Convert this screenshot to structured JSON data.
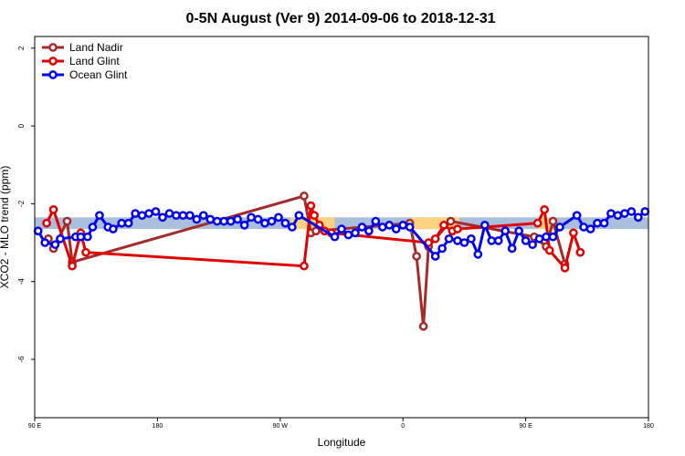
{
  "chart_data": {
    "type": "line",
    "title": "0-5N August (Ver 9)   2014-09-06 to 2018-12-31",
    "xlabel": "Longitude",
    "ylabel": "XCO2 - MLO trend (ppm)",
    "ylim": [
      -7.5,
      2.3
    ],
    "xlim": [
      0,
      360
    ],
    "y_ticks": [
      2,
      0,
      -2,
      -4,
      -6
    ],
    "x_ticks": [
      {
        "pos": 0,
        "label": "90 E"
      },
      {
        "pos": 72,
        "label": "180"
      },
      {
        "pos": 144,
        "label": "90 W"
      },
      {
        "pos": 216,
        "label": "0"
      },
      {
        "pos": 288,
        "label": "90 E"
      },
      {
        "pos": 360,
        "label": "180"
      }
    ],
    "legend_position": "top-left",
    "background_band": {
      "y_range": [
        -2.65,
        -2.35
      ],
      "color": "#a9bfdc",
      "highlight_color": "#ffd27f",
      "highlights_x": [
        [
          150,
          176
        ],
        [
          221,
          249
        ],
        [
          295,
          305
        ]
      ]
    },
    "series": [
      {
        "name": "Land Nadir",
        "color": "#a52a2a",
        "x": [
          8,
          11,
          19,
          22,
          158,
          162,
          165,
          220,
          224,
          228,
          231,
          244,
          293,
          300,
          304,
          311
        ],
        "y": [
          -2.9,
          -3.15,
          -2.45,
          -3.5,
          -1.8,
          -2.75,
          -2.7,
          -2.5,
          -3.35,
          -5.15,
          -3.1,
          -2.45,
          -2.85,
          -3.1,
          -2.45,
          -3.55
        ]
      },
      {
        "name": "Land Glint",
        "color": "#e10000",
        "x": [
          7,
          11,
          22,
          27,
          30,
          158,
          162,
          164,
          167,
          170,
          174,
          231,
          235,
          240,
          245,
          248,
          295,
          299,
          302,
          311,
          316,
          320
        ],
        "y": [
          -2.5,
          -2.15,
          -3.6,
          -2.75,
          -3.25,
          -3.6,
          -2.05,
          -2.3,
          -2.55,
          -2.7,
          -2.75,
          -3.0,
          -2.9,
          -2.55,
          -2.7,
          -2.65,
          -2.5,
          -2.15,
          -3.2,
          -3.65,
          -2.75,
          -3.25
        ]
      },
      {
        "name": "Ocean Glint",
        "color": "#0000ee",
        "x": [
          2,
          6,
          12,
          15,
          24,
          27,
          31,
          34,
          38,
          43,
          46,
          51,
          55,
          59,
          63,
          67,
          71,
          75,
          79,
          83,
          87,
          91,
          95,
          99,
          103,
          107,
          111,
          115,
          119,
          123,
          127,
          131,
          135,
          139,
          143,
          147,
          151,
          155,
          176,
          180,
          184,
          188,
          192,
          196,
          200,
          204,
          208,
          212,
          216,
          220,
          235,
          239,
          243,
          248,
          252,
          256,
          260,
          264,
          268,
          272,
          276,
          280,
          284,
          288,
          292,
          296,
          300,
          304,
          308,
          318,
          322,
          326,
          330,
          334,
          338,
          342,
          346,
          350,
          354,
          358
        ],
        "y": [
          -2.7,
          -3.0,
          -3.05,
          -2.9,
          -2.85,
          -2.85,
          -2.85,
          -2.6,
          -2.3,
          -2.6,
          -2.65,
          -2.5,
          -2.5,
          -2.25,
          -2.3,
          -2.25,
          -2.2,
          -2.35,
          -2.25,
          -2.3,
          -2.3,
          -2.3,
          -2.4,
          -2.3,
          -2.4,
          -2.45,
          -2.45,
          -2.45,
          -2.4,
          -2.55,
          -2.35,
          -2.4,
          -2.5,
          -2.45,
          -2.35,
          -2.5,
          -2.6,
          -2.3,
          -2.85,
          -2.65,
          -2.8,
          -2.75,
          -2.6,
          -2.7,
          -2.45,
          -2.6,
          -2.55,
          -2.65,
          -2.55,
          -2.6,
          -3.35,
          -3.15,
          -2.9,
          -2.95,
          -3.0,
          -2.9,
          -3.3,
          -2.55,
          -2.95,
          -2.95,
          -2.7,
          -3.15,
          -2.7,
          -2.95,
          -3.05,
          -2.9,
          -2.85,
          -2.85,
          -2.6,
          -2.3,
          -2.6,
          -2.65,
          -2.5,
          -2.5,
          -2.25,
          -2.3,
          -2.25,
          -2.2,
          -2.35,
          -2.2
        ]
      }
    ]
  }
}
